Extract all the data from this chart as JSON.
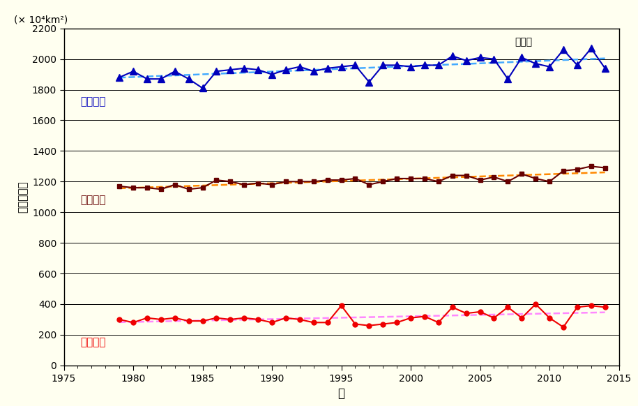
{
  "years": [
    1979,
    1980,
    1981,
    1982,
    1983,
    1984,
    1985,
    1986,
    1987,
    1988,
    1989,
    1990,
    1991,
    1992,
    1993,
    1994,
    1995,
    1996,
    1997,
    1998,
    1999,
    2000,
    2001,
    2002,
    2003,
    2004,
    2005,
    2006,
    2007,
    2008,
    2009,
    2010,
    2011,
    2012,
    2013,
    2014
  ],
  "max_values": [
    1880,
    1920,
    1870,
    1870,
    1920,
    1870,
    1810,
    1920,
    1930,
    1940,
    1930,
    1900,
    1930,
    1950,
    1920,
    1940,
    1950,
    1960,
    1850,
    1960,
    1960,
    1950,
    1960,
    1960,
    2020,
    1990,
    2010,
    2000,
    1870,
    2010,
    1970,
    1950,
    2060,
    1960,
    2070,
    1940
  ],
  "mean_values": [
    1170,
    1160,
    1160,
    1150,
    1180,
    1150,
    1160,
    1210,
    1200,
    1180,
    1190,
    1180,
    1200,
    1200,
    1200,
    1210,
    1210,
    1220,
    1180,
    1200,
    1220,
    1220,
    1220,
    1200,
    1240,
    1240,
    1210,
    1230,
    1200,
    1250,
    1220,
    1200,
    1270,
    1280,
    1300,
    1290
  ],
  "min_values": [
    300,
    280,
    310,
    300,
    310,
    290,
    290,
    310,
    300,
    310,
    300,
    280,
    310,
    300,
    280,
    280,
    390,
    270,
    260,
    270,
    280,
    310,
    320,
    280,
    380,
    340,
    350,
    310,
    380,
    310,
    400,
    310,
    250,
    380,
    390,
    380
  ],
  "background_color": "#fffff0",
  "plot_bg_color": "#fffff0",
  "max_color": "#0000bb",
  "mean_color": "#660000",
  "min_color": "#ee0000",
  "max_trend_color": "#44aaff",
  "mean_trend_color": "#ff8800",
  "min_trend_color": "#ff88ff",
  "xlabel": "年",
  "ylabel": "海氷域面積",
  "unit_label": "(× 10⁴km²)",
  "label_max": "年最大値",
  "label_mean": "年平均値",
  "label_min": "年最小値",
  "region_label": "南極域",
  "ylim": [
    0,
    2200
  ],
  "xlim": [
    1975,
    2015
  ],
  "yticks": [
    0,
    200,
    400,
    600,
    800,
    1000,
    1200,
    1400,
    1600,
    1800,
    2000,
    2200
  ]
}
